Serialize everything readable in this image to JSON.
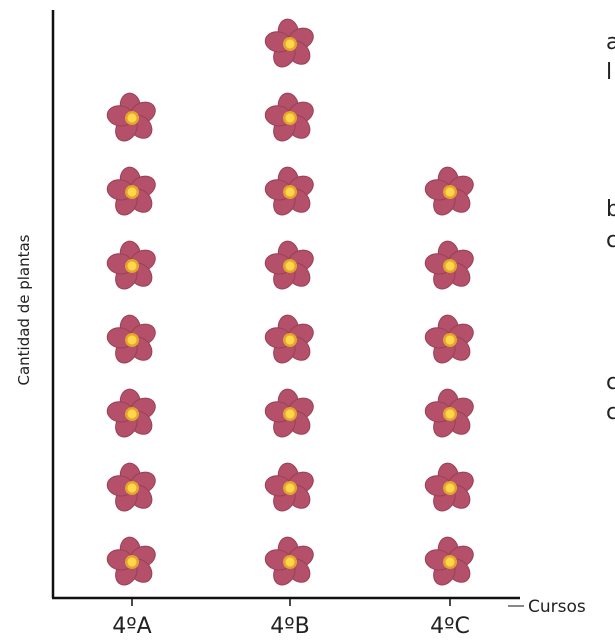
{
  "colors": {
    "petal": "#b4506a",
    "petal_edge": "#9a3f57",
    "center": "#ffd74a",
    "center_ring": "#e4a52d",
    "axis": "#111111"
  },
  "icons": {
    "unit": "flower-icon"
  },
  "side_text": [
    "a",
    "l",
    "b",
    "c",
    "c",
    "c"
  ],
  "chart_data": {
    "type": "pictograph",
    "title": "",
    "xlabel": "Cursos",
    "ylabel": "Cantidad de plantas",
    "categories": [
      "4ºA",
      "4ºB",
      "4ºC"
    ],
    "values": [
      7,
      8,
      6
    ],
    "unit_icon": "flower",
    "grid": false,
    "legend": "none"
  }
}
